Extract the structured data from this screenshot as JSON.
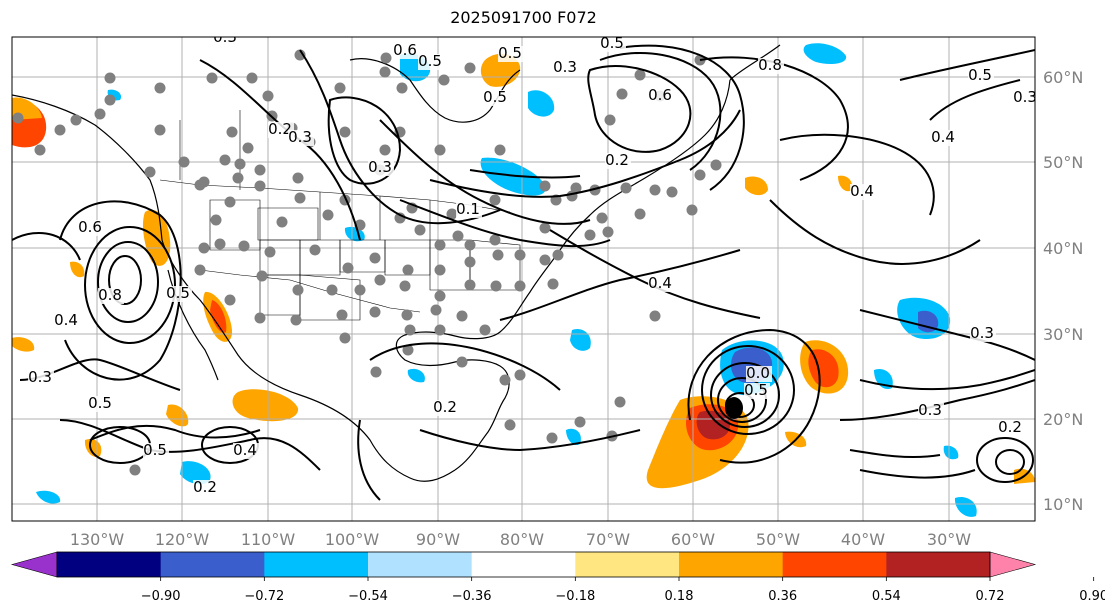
{
  "title": "2025091700 F072",
  "map": {
    "longitude_labels": [
      "130°W",
      "120°W",
      "110°W",
      "100°W",
      "90°W",
      "80°W",
      "70°W",
      "60°W",
      "50°W",
      "40°W",
      "30°W"
    ],
    "latitude_labels": [
      "60°N",
      "50°N",
      "40°N",
      "30°N",
      "20°N",
      "10°N"
    ],
    "contour_labels": [
      "0.3",
      "0.6",
      "0.5",
      "0.5",
      "0.5",
      "0.5",
      "0.3",
      "0.6",
      "0.8",
      "0.2",
      "0.3",
      "0.3",
      "0.2",
      "0.1",
      "0.4",
      "0.4",
      "0.6",
      "0.8",
      "0.5",
      "0.4",
      "0.3",
      "0.3",
      "0.5",
      "0.5",
      "0.4",
      "0.2",
      "0.2",
      "0.5",
      "0.0",
      "0.4",
      "0.5",
      "0.3",
      "0.2",
      "0.3"
    ],
    "storm_marker": "black-dot-tropical-cyclone"
  },
  "colorbar": {
    "tick_labels": [
      "−0.90",
      "−0.72",
      "−0.54",
      "−0.36",
      "−0.18",
      "0.18",
      "0.36",
      "0.54",
      "0.72",
      "0.90"
    ],
    "colors": [
      "#9932cc",
      "#000080",
      "#3a5fcd",
      "#00bfff",
      "#b0e2ff",
      "#ffffff",
      "#ffe680",
      "#ffa500",
      "#ff4500",
      "#b22222",
      "#ff82ab"
    ]
  },
  "colors": {
    "station_dot": "#808080",
    "contour": "#000000",
    "grid": "#b0b0b0"
  }
}
